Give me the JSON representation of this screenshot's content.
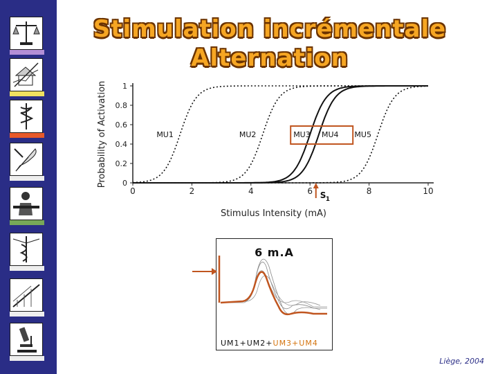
{
  "title": {
    "line1": "Stimulation incrémentale",
    "line2": "Alternation"
  },
  "sidebar": {
    "bar_colors": [
      "#b48fd6",
      "#f0e060",
      "#e85a2a",
      "#eeeeee",
      "#78a858",
      "#eeeeee",
      "#eeeeee",
      "#eeeeee"
    ]
  },
  "chart_data": {
    "type": "line",
    "xlabel": "Stimulus Intensity (mA)",
    "ylabel": "Probability of Activation",
    "xlim": [
      0,
      10
    ],
    "ylim": [
      0,
      1
    ],
    "x_ticks": [
      "0",
      "2",
      "4",
      "6",
      "8",
      "10"
    ],
    "y_ticks": [
      "0",
      "0.2",
      "0.4",
      "0.6",
      "0.8",
      "1"
    ],
    "series": [
      {
        "name": "MU1",
        "midpoint": 1.6,
        "style": "dotted"
      },
      {
        "name": "MU2",
        "midpoint": 4.4,
        "style": "dotted"
      },
      {
        "name": "MU3",
        "midpoint": 6.0,
        "style": "solid"
      },
      {
        "name": "MU4",
        "midpoint": 6.3,
        "style": "solid"
      },
      {
        "name": "MU5",
        "midpoint": 8.3,
        "style": "dotted"
      }
    ],
    "annotation": {
      "label": "S",
      "subscript": "1",
      "x": 6.2
    },
    "highlight_labels": [
      "MU3",
      "MU4"
    ]
  },
  "trace": {
    "label": "6 m.A",
    "sum_part1": "UM1+UM2+",
    "sum_part2": "UM3+UM4"
  },
  "footer": "Liège, 2004",
  "colors": {
    "sidebar": "#2a2d86",
    "title_fill": "#f6a623",
    "accent": "#c0551f",
    "trace_text": "#d4740f"
  }
}
